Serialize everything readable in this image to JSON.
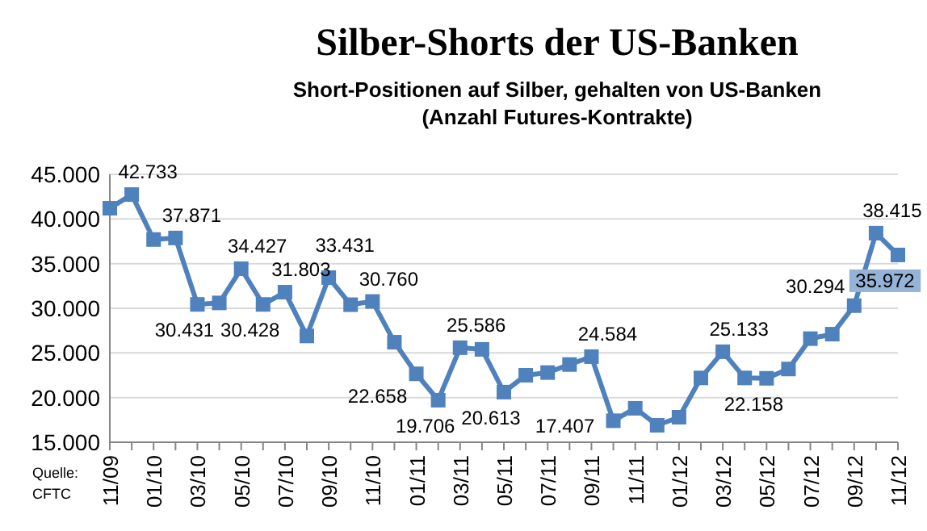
{
  "chart_data": {
    "type": "line",
    "title": "Silber-Shorts der US-Banken",
    "subtitle": "Short-Positionen auf Silber, gehalten von US-Banken (Anzahl Futures-Kontrakte)",
    "categories": [
      "11/09",
      null,
      "01/10",
      null,
      "03/10",
      null,
      "05/10",
      null,
      "07/10",
      null,
      "09/10",
      null,
      "11/10",
      null,
      "01/11",
      null,
      "03/11",
      null,
      "05/11",
      null,
      "07/11",
      null,
      "09/11",
      null,
      "11/11",
      null,
      "01/12",
      null,
      "03/12",
      null,
      "05/12",
      null,
      "07/12",
      null,
      "09/12",
      null,
      "11/12"
    ],
    "series": [
      {
        "color": "#4f81bd",
        "values": [
          41200,
          42733,
          37700,
          37871,
          30431,
          30600,
          34427,
          30428,
          31803,
          26900,
          33431,
          30400,
          30760,
          26200,
          22658,
          19706,
          25586,
          25400,
          20613,
          22500,
          22800,
          23700,
          24584,
          17407,
          18800,
          16900,
          17800,
          22200,
          25133,
          22200,
          22158,
          23200,
          26600,
          27100,
          30294,
          38415,
          35972
        ],
        "value_labels": [
          null,
          "42.733",
          null,
          "37.871",
          "30.431",
          null,
          "34.427",
          "30.428",
          "31.803",
          null,
          "33.431",
          null,
          "30.760",
          null,
          "22.658",
          "19.706",
          "25.586",
          null,
          "20.613",
          null,
          null,
          null,
          "24.584",
          "17.407",
          null,
          null,
          null,
          null,
          "25.133",
          null,
          "22.158",
          null,
          null,
          null,
          "30.294",
          "38.415",
          "35.972"
        ]
      }
    ],
    "ylim": [
      15000,
      45000
    ],
    "yticks": [
      {
        "value": 15000,
        "label": "15.000"
      },
      {
        "value": 20000,
        "label": "20.000"
      },
      {
        "value": 25000,
        "label": "25.000"
      },
      {
        "value": 30000,
        "label": "30.000"
      },
      {
        "value": 35000,
        "label": "35.000"
      },
      {
        "value": 40000,
        "label": "40.000"
      },
      {
        "value": 45000,
        "label": "45.000"
      }
    ],
    "grid": "y",
    "marker": "square",
    "line_style": "solid",
    "annotations": [
      "Quelle: CFTC"
    ]
  }
}
